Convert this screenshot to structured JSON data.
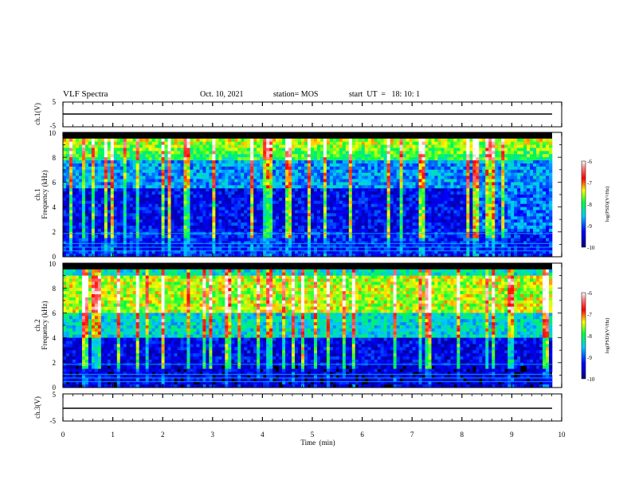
{
  "header": {
    "title": "VLF Spectra",
    "date": "Oct. 10, 2021",
    "station": "station= MOS",
    "start": "start  UT  =   18: 10: 1"
  },
  "chart_data": [
    {
      "type": "line",
      "panel": "ch1-waveform",
      "ylabel": "ch.1(V)",
      "ylim": [
        -5,
        5
      ],
      "yticks": [
        "5",
        "-5"
      ],
      "series": [
        {
          "x": [
            0,
            9.8
          ],
          "values": [
            0,
            0
          ]
        }
      ]
    },
    {
      "type": "heatmap",
      "panel": "ch1-spectrogram",
      "ylabel": "ch.1\nFrequency (kHz)",
      "ylim": [
        0,
        10
      ],
      "yticks": [
        "0",
        "2",
        "4",
        "6",
        "8",
        "10"
      ],
      "xlim": [
        0,
        10
      ],
      "data_extent_x": [
        0,
        9.8
      ],
      "colorbar": {
        "label": "log(PSD)(V²/Hz)",
        "range": [
          -10,
          -6
        ],
        "ticks": [
          "-6",
          "-7",
          "-8",
          "-9",
          "-10"
        ]
      }
    },
    {
      "type": "heatmap",
      "panel": "ch2-spectrogram",
      "ylabel": "ch.2\nFrequency (kHz)",
      "ylim": [
        0,
        10
      ],
      "yticks": [
        "0",
        "2",
        "4",
        "6",
        "8",
        "10"
      ],
      "xlim": [
        0,
        10
      ],
      "data_extent_x": [
        0,
        9.8
      ],
      "colorbar": {
        "label": "log(PSD)(V²/Hz)",
        "range": [
          -10,
          -6
        ],
        "ticks": [
          "-6",
          "-7",
          "-8",
          "-9",
          "-10"
        ]
      }
    },
    {
      "type": "line",
      "panel": "ch3-waveform",
      "ylabel": "ch.3(V)",
      "ylim": [
        -5,
        5
      ],
      "yticks": [
        "5",
        "-5"
      ],
      "series": [
        {
          "x": [
            0,
            9.8
          ],
          "values": [
            0,
            0
          ]
        }
      ]
    }
  ],
  "xaxis": {
    "label": "Time  (min)",
    "ticks": [
      "0",
      "1",
      "2",
      "3",
      "4",
      "5",
      "6",
      "7",
      "8",
      "9",
      "10"
    ]
  }
}
